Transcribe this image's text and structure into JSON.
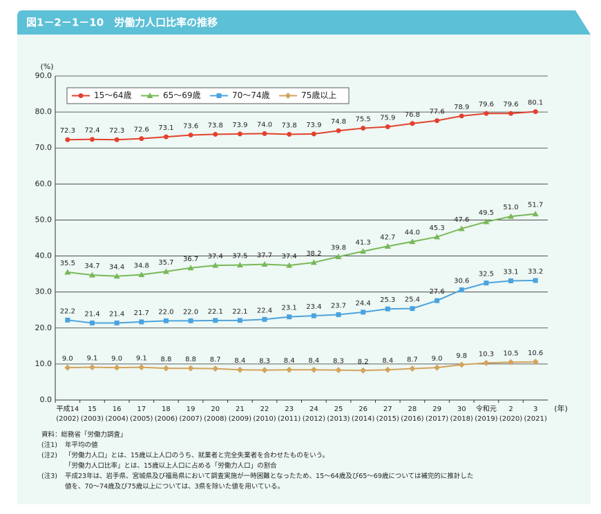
{
  "header": {
    "title": "図1－2－1－10　労働力人口比率の推移"
  },
  "chart_data": {
    "type": "line",
    "y_unit": "(%)",
    "x_unit": "(年)",
    "categories": [
      "平成14",
      "15",
      "16",
      "17",
      "18",
      "19",
      "20",
      "21",
      "22",
      "23",
      "24",
      "25",
      "26",
      "27",
      "28",
      "29",
      "30",
      "令和元",
      "2",
      "3"
    ],
    "category_sublabels": [
      "(2002)",
      "(2003)",
      "(2004)",
      "(2005)",
      "(2006)",
      "(2007)",
      "(2008)",
      "(2009)",
      "(2010)",
      "(2011)",
      "(2012)",
      "(2013)",
      "(2014)",
      "(2015)",
      "(2016)",
      "(2017)",
      "(2018)",
      "(2019)",
      "(2020)",
      "(2021)"
    ],
    "series": [
      {
        "name": "15～64歳",
        "color": "#e2412d",
        "marker": "circle",
        "values": [
          72.3,
          72.4,
          72.3,
          72.6,
          73.1,
          73.6,
          73.8,
          73.9,
          74.0,
          73.8,
          73.9,
          74.8,
          75.5,
          75.9,
          76.8,
          77.6,
          78.9,
          79.6,
          79.6,
          80.1
        ],
        "value_labels": [
          "72.3",
          "72.4",
          "72.3",
          "72.6",
          "73.1",
          "73.6",
          "73.8",
          "73.9",
          "74.0",
          "73.8",
          "73.9",
          "74.8",
          "75.5",
          "75.9",
          "76.8",
          "77.6",
          "78.9",
          "79.6",
          "79.6",
          "80.1"
        ]
      },
      {
        "name": "65～69歳",
        "color": "#78b858",
        "marker": "triangle",
        "values": [
          35.5,
          34.7,
          34.4,
          34.8,
          35.7,
          36.7,
          37.4,
          37.5,
          37.7,
          37.4,
          38.2,
          39.8,
          41.3,
          42.7,
          44.0,
          45.3,
          47.6,
          49.5,
          51.0,
          51.7
        ],
        "value_labels": [
          "35.5",
          "34.7",
          "34.4",
          "34.8",
          "35.7",
          "36.7",
          "37.4",
          "37.5",
          "37.7",
          "37.4",
          "38.2",
          "39.8",
          "41.3",
          "42.7",
          "44.0",
          "45.3",
          "47.6",
          "49.5",
          "51.0",
          "51.7"
        ]
      },
      {
        "name": "70～74歳",
        "color": "#4ba3de",
        "marker": "square",
        "values": [
          22.2,
          21.4,
          21.4,
          21.7,
          22.0,
          22.0,
          22.1,
          22.1,
          22.4,
          23.1,
          23.4,
          23.7,
          24.4,
          25.3,
          25.4,
          27.6,
          30.6,
          32.5,
          33.1,
          33.2
        ],
        "value_labels": [
          "22.2",
          "21.4",
          "21.4",
          "21.7",
          "22.0",
          "22.0",
          "22.1",
          "22.1",
          "22.4",
          "23.1",
          "23.4",
          "23.7",
          "24.4",
          "25.3",
          "25.4",
          "27.6",
          "30.6",
          "32.5",
          "33.1",
          "33.2"
        ]
      },
      {
        "name": "75歳以上",
        "color": "#d3a45c",
        "marker": "diamond",
        "values": [
          9.0,
          9.1,
          9.0,
          9.1,
          8.8,
          8.8,
          8.7,
          8.4,
          8.3,
          8.4,
          8.4,
          8.3,
          8.2,
          8.4,
          8.7,
          9.0,
          9.8,
          10.3,
          10.5,
          10.6
        ],
        "value_labels": [
          "9.0",
          "9.1",
          "9.0",
          "9.1",
          "8.8",
          "8.8",
          "8.7",
          "8.4",
          "8.3",
          "8.4",
          "8.4",
          "8.3",
          "8.2",
          "8.4",
          "8.7",
          "9.0",
          "9.8",
          "10.3",
          "10.5",
          "10.6"
        ]
      }
    ],
    "ylim": [
      0,
      90
    ],
    "yticks": [
      {
        "value": 0,
        "label": "0.0"
      },
      {
        "value": 10,
        "label": "10.0"
      },
      {
        "value": 20,
        "label": "20.0"
      },
      {
        "value": 30,
        "label": "30.0"
      },
      {
        "value": 40,
        "label": "40.0"
      },
      {
        "value": 50,
        "label": "50.0"
      },
      {
        "value": 60,
        "label": "60.0"
      },
      {
        "value": 70,
        "label": "70.0"
      },
      {
        "value": 80,
        "label": "80.0"
      },
      {
        "value": 90,
        "label": "90.0"
      }
    ],
    "grid": true,
    "legend": "top-left"
  },
  "notes": {
    "source": "資料：総務省「労働力調査」",
    "items": [
      {
        "label": "(注1)",
        "lines": [
          "年平均の値"
        ]
      },
      {
        "label": "(注2)",
        "lines": [
          "「労働力人口」とは、15歳以上人口のうち、就業者と完全失業者を合わせたものをいう。",
          "「労働力人口比率」とは、15歳以上人口に占める「労働力人口」の割合"
        ]
      },
      {
        "label": "(注3)",
        "lines": [
          "平成23年は、岩手県、宮城県及び福島県において調査実施が一時困難となったため、15～64歳及び65～69歳については補完的に推計した",
          "値を、70～74歳及び75歳以上については、3県を除いた値を用いている。"
        ]
      }
    ]
  }
}
